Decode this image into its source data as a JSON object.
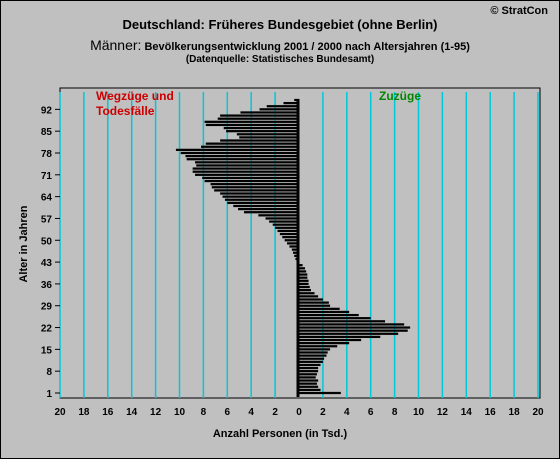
{
  "title": "Deutschland: Früheres Bundesgebiet (ohne Berlin)",
  "subtitle_big": "Männer:",
  "subtitle_rest": " Bevölkerungsentwicklung 2001 / 2000 nach Altersjahren (1-95)",
  "source": "(Datenquelle: Statistisches Bundesamt)",
  "copyright": "© StratCon",
  "left_label_line1": "Wegzüge und",
  "left_label_line2": "Todesfälle",
  "right_label": "Zuzüge",
  "colors": {
    "background": "#c0c0c0",
    "grid": "#00c8d8",
    "bars": "#000000",
    "left_label": "#cc0000",
    "right_label": "#008800"
  },
  "chart_data": {
    "type": "bar",
    "orientation": "horizontal",
    "xlabel": "Anzahl Personen (in Tsd.)",
    "ylabel": "Alter in Jahren",
    "xlim": [
      -20,
      20
    ],
    "ylim": [
      1,
      95
    ],
    "x_tick_labels": [
      "20",
      "18",
      "16",
      "14",
      "12",
      "10",
      "8",
      "6",
      "4",
      "2",
      "0",
      "2",
      "4",
      "6",
      "8",
      "10",
      "12",
      "14",
      "16",
      "18",
      "20"
    ],
    "y_ticks": [
      1,
      8,
      15,
      22,
      29,
      36,
      43,
      50,
      57,
      64,
      71,
      78,
      85,
      92
    ],
    "grid": "vertical",
    "series": [
      {
        "name": "Zuzüge",
        "side": "right",
        "ages": [
          1,
          2,
          3,
          4,
          5,
          6,
          7,
          8,
          9,
          10,
          11,
          12,
          13,
          14,
          15,
          16,
          17,
          18,
          19,
          20,
          21,
          22,
          23,
          24,
          25,
          26,
          27,
          28,
          29,
          30,
          31,
          32,
          33,
          34,
          35,
          36,
          37,
          38,
          39,
          40,
          41,
          42
        ],
        "values": [
          3.5,
          1.8,
          1.6,
          1.5,
          1.6,
          1.4,
          1.5,
          1.6,
          1.6,
          1.8,
          2.0,
          2.1,
          2.3,
          2.4,
          2.6,
          3.2,
          4.2,
          5.2,
          6.8,
          8.3,
          9.1,
          9.3,
          8.8,
          7.2,
          6.0,
          5.0,
          4.2,
          3.4,
          2.6,
          2.5,
          2.0,
          1.6,
          1.3,
          1.0,
          0.9,
          0.8,
          0.8,
          0.7,
          0.7,
          0.6,
          0.5,
          0.3
        ]
      },
      {
        "name": "Wegzüge und Todesfälle",
        "side": "left",
        "ages": [
          44,
          45,
          46,
          47,
          48,
          49,
          50,
          51,
          52,
          53,
          54,
          55,
          56,
          57,
          58,
          59,
          60,
          61,
          62,
          63,
          64,
          65,
          66,
          67,
          68,
          69,
          70,
          71,
          72,
          73,
          74,
          75,
          76,
          77,
          78,
          79,
          80,
          81,
          82,
          83,
          84,
          85,
          86,
          87,
          88,
          89,
          90,
          91,
          92,
          93,
          94,
          95
        ],
        "values": [
          0.3,
          0.4,
          0.5,
          0.6,
          0.8,
          1.0,
          1.2,
          1.4,
          1.6,
          1.8,
          2.0,
          2.2,
          2.5,
          2.8,
          3.4,
          4.6,
          5.1,
          5.5,
          6.0,
          6.2,
          6.4,
          6.6,
          7.1,
          7.3,
          7.4,
          7.9,
          8.1,
          8.7,
          8.9,
          8.9,
          8.6,
          8.7,
          9.4,
          9.5,
          9.9,
          10.3,
          8.2,
          7.8,
          6.6,
          5.0,
          5.2,
          6.1,
          6.3,
          7.8,
          7.9,
          6.8,
          6.6,
          4.9,
          3.3,
          2.7,
          1.3,
          0.4
        ]
      }
    ]
  }
}
